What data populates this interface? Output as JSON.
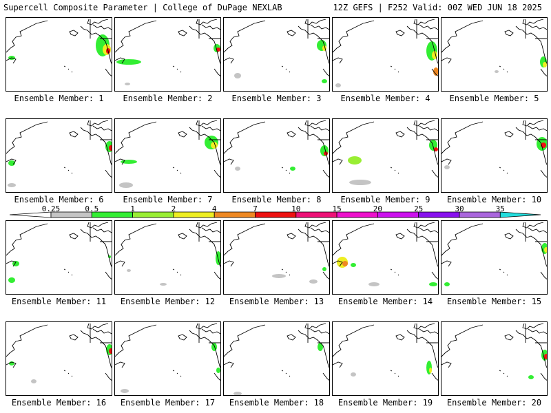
{
  "header": {
    "left": "Supercell Composite Parameter | College of DuPage NEXLAB",
    "right": "12Z GEFS | F252 Valid: 00Z WED JUN 18 2025"
  },
  "colorbar": {
    "labels": [
      "0.25",
      "0.5",
      "1",
      "2",
      "4",
      "7",
      "10",
      "15",
      "20",
      "25",
      "30",
      "35"
    ],
    "colors": [
      "#ffffff",
      "#c4c4c4",
      "#33ee33",
      "#99ee33",
      "#eeee22",
      "#ee8822",
      "#ee1111",
      "#ee1177",
      "#ee11cc",
      "#cc11ee",
      "#8811ee",
      "#aa66dd",
      "#22dddd"
    ]
  },
  "panels": [
    {
      "caption": "Ensemble Member: 1"
    },
    {
      "caption": "Ensemble Member: 2"
    },
    {
      "caption": "Ensemble Member: 3"
    },
    {
      "caption": "Ensemble Member: 4"
    },
    {
      "caption": "Ensemble Member: 5"
    },
    {
      "caption": "Ensemble Member: 6"
    },
    {
      "caption": "Ensemble Member: 7"
    },
    {
      "caption": "Ensemble Member: 8"
    },
    {
      "caption": "Ensemble Member: 9"
    },
    {
      "caption": "Ensemble Member: 10"
    },
    {
      "caption": "Ensemble Member: 11"
    },
    {
      "caption": "Ensemble Member: 12"
    },
    {
      "caption": "Ensemble Member: 13"
    },
    {
      "caption": "Ensemble Member: 14"
    },
    {
      "caption": "Ensemble Member: 15"
    },
    {
      "caption": "Ensemble Member: 16"
    },
    {
      "caption": "Ensemble Member: 17"
    },
    {
      "caption": "Ensemble Member: 18"
    },
    {
      "caption": "Ensemble Member: 19"
    },
    {
      "caption": "Ensemble Member: 20"
    }
  ]
}
